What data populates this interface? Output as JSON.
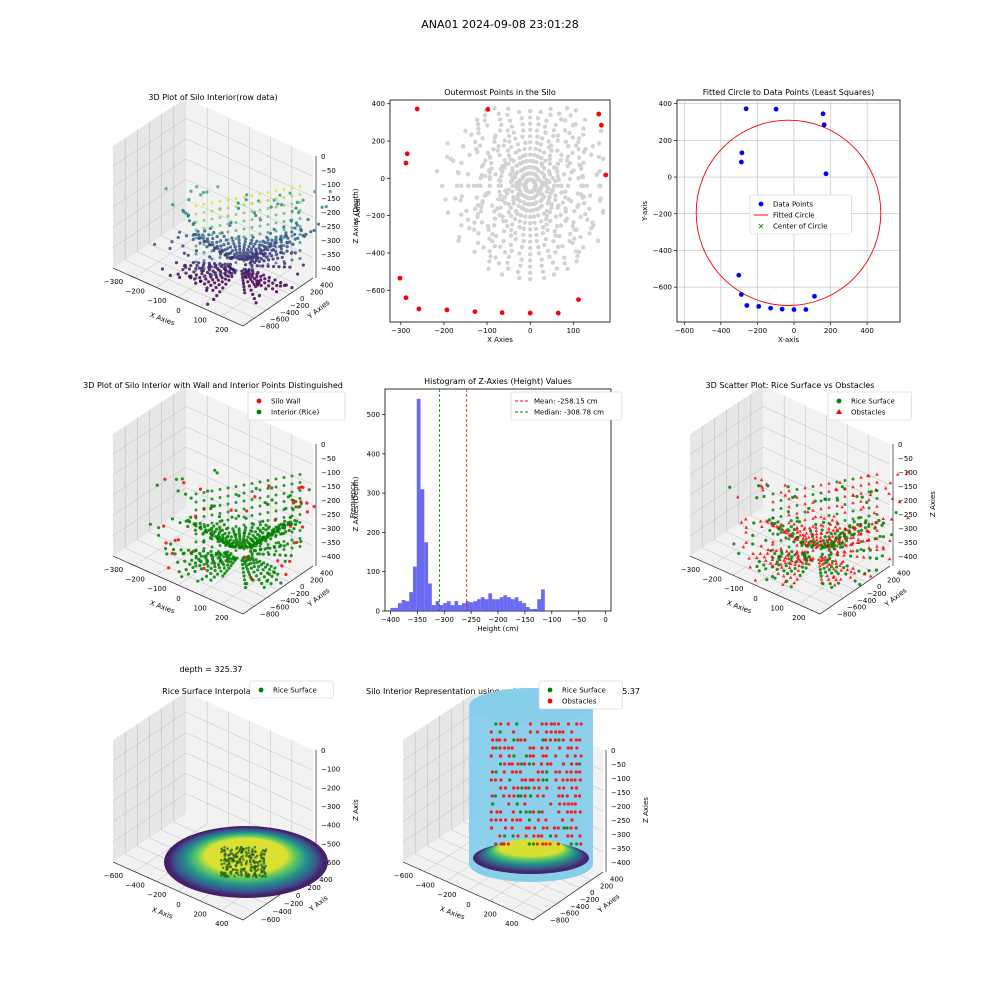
{
  "suptitle": "ANA01 2024-09-08 23:01:28",
  "colors": {
    "axis": "#000000",
    "grid": "#b0b0b0",
    "pane": "#f2f2f2",
    "pane_side": "#e6e6e6",
    "gray_point": "#d3d3d3",
    "red": "#ff0000",
    "blue": "#0000ff",
    "green": "#008000",
    "hist_bar": "#5050f2",
    "cylinder": "#87ceeb"
  },
  "chart_data": [
    {
      "id": "p1",
      "type": "scatter3d",
      "title": "3D Plot of Silo Interior(row data)",
      "xlabel": "X Axies",
      "ylabel": "Y Axies",
      "zlabel": "Z Axies (Depth)",
      "xticks": [
        "−300",
        "−200",
        "−100",
        "0",
        "100",
        "200"
      ],
      "yticks": [
        "400",
        "200",
        "0",
        "−200",
        "−400",
        "−600",
        "−800"
      ],
      "zticks": [
        "0",
        "−50",
        "−100",
        "−150",
        "−200",
        "−250",
        "−300",
        "−350",
        "−400"
      ],
      "colormap": "viridis"
    },
    {
      "id": "p2",
      "type": "scatter",
      "title": "Outermost Points in the Silo",
      "xlabel": "X Axies",
      "ylabel": "Y Axies",
      "xlim": [
        -325,
        185
      ],
      "ylim": [
        -770,
        420
      ],
      "xticks": [
        -300,
        -200,
        -100,
        0,
        100
      ],
      "yticks": [
        400,
        200,
        0,
        -200,
        -400,
        -600
      ],
      "series": [
        {
          "color": "red",
          "points": [
            [
              -262,
              372
            ],
            [
              -98,
              370
            ],
            [
              159,
              345
            ],
            [
              165,
              285
            ],
            [
              -285,
              132
            ],
            [
              -288,
              82
            ],
            [
              175,
              18
            ],
            [
              -302,
              -535
            ],
            [
              -288,
              -640
            ],
            [
              -258,
              -700
            ],
            [
              -193,
              -705
            ],
            [
              -128,
              -715
            ],
            [
              -65,
              -720
            ],
            [
              0,
              -722
            ],
            [
              65,
              -722
            ],
            [
              112,
              -650
            ]
          ]
        }
      ]
    },
    {
      "id": "p3",
      "type": "scatter",
      "title": "Fitted Circle to Data Points (Least Squares)",
      "xlabel": "X-axis",
      "ylabel": "Y-axis",
      "xlim": [
        -640,
        580
      ],
      "ylim": [
        -790,
        420
      ],
      "xticks": [
        -600,
        -400,
        -200,
        0,
        200,
        400
      ],
      "yticks": [
        400,
        200,
        0,
        -200,
        -400,
        -600
      ],
      "circle": {
        "cx": -30,
        "cy": -195,
        "r": 505
      },
      "center_marker": [
        -30,
        -195
      ],
      "points": [
        [
          -262,
          372
        ],
        [
          -98,
          370
        ],
        [
          159,
          345
        ],
        [
          165,
          285
        ],
        [
          -285,
          132
        ],
        [
          -288,
          82
        ],
        [
          175,
          18
        ],
        [
          -302,
          -535
        ],
        [
          -288,
          -640
        ],
        [
          -258,
          -700
        ],
        [
          -193,
          -705
        ],
        [
          -128,
          -715
        ],
        [
          -65,
          -720
        ],
        [
          0,
          -722
        ],
        [
          65,
          -722
        ],
        [
          112,
          -650
        ]
      ],
      "legend": [
        "Data Points",
        "Fitted Circle",
        "Center of Circle"
      ]
    },
    {
      "id": "p4",
      "type": "scatter3d",
      "title": "3D Plot of Silo Interior with Wall and Interior Points Distinguished",
      "xlabel": "X Axies",
      "ylabel": "Y Axies",
      "zlabel": "Z Axies (Depth)",
      "xticks": [
        "−300",
        "−200",
        "−100",
        "0",
        "100",
        "200"
      ],
      "yticks": [
        "400",
        "200",
        "0",
        "−200",
        "−400",
        "−600",
        "−800"
      ],
      "zticks": [
        "0",
        "−50",
        "−100",
        "−150",
        "−200",
        "−250",
        "−300",
        "−350",
        "−400"
      ],
      "legend": [
        "Silo Wall",
        "Interior (Rice)"
      ]
    },
    {
      "id": "p5",
      "type": "bar",
      "title": "Histogram of Z-Axies (Height) Values",
      "xlabel": "Height (cm)",
      "ylabel": "Frequency",
      "xlim": [
        -410,
        10
      ],
      "ylim": [
        0,
        565
      ],
      "xticks": [
        -400,
        -350,
        -300,
        -250,
        -200,
        -150,
        -100,
        -50,
        0
      ],
      "yticks": [
        0,
        100,
        200,
        300,
        400,
        500
      ],
      "bin_start": -400,
      "bin_width": 7,
      "values": [
        8,
        8,
        20,
        28,
        25,
        48,
        113,
        540,
        310,
        175,
        70,
        15,
        25,
        15,
        20,
        25,
        15,
        25,
        15,
        20,
        25,
        22,
        25,
        30,
        35,
        30,
        45,
        30,
        30,
        35,
        40,
        35,
        30,
        35,
        25,
        20,
        10,
        5,
        5,
        30,
        55
      ],
      "mean": -258.15,
      "median": -308.78,
      "legend": [
        "Mean: -258.15 cm",
        "Median: -308.78 cm"
      ]
    },
    {
      "id": "p6",
      "type": "scatter3d",
      "title": "3D Scatter Plot: Rice Surface vs Obstacles",
      "xlabel": "X Axies",
      "ylabel": "Y Axies",
      "zlabel": "Z Axies",
      "xticks": [
        "−300",
        "−200",
        "−100",
        "0",
        "100",
        "200"
      ],
      "yticks": [
        "400",
        "200",
        "0",
        "−200",
        "−400",
        "−600",
        "−800"
      ],
      "zticks": [
        "0",
        "−50",
        "−100",
        "−150",
        "−200",
        "−250",
        "−300",
        "−350",
        "−400"
      ],
      "legend": [
        "Rice Surface",
        "Obstacles"
      ]
    },
    {
      "id": "p7",
      "type": "surface3d",
      "title": "Rice Surface Interpolated",
      "subtitle": "depth = 325.37",
      "xlabel": "X Axis",
      "ylabel": "Y Axis",
      "zlabel": "Z Axis",
      "xticks": [
        "−600",
        "−400",
        "−200",
        "0",
        "200",
        "400"
      ],
      "yticks": [
        "400",
        "200",
        "0",
        "−200",
        "−400",
        "−600"
      ],
      "zticks": [
        "0",
        "−100",
        "−200",
        "−300",
        "−400",
        "−500",
        "−600"
      ],
      "legend": [
        "Rice Surface"
      ]
    },
    {
      "id": "p8",
      "type": "surface3d",
      "title": "Silo Interior Representation using weighted average depth = 325.37",
      "xlabel": "X Axies",
      "ylabel": "Y Axies",
      "zlabel": "Z Axies",
      "xticks": [
        "−600",
        "−400",
        "−200",
        "0",
        "200",
        "400"
      ],
      "yticks": [
        "400",
        "200",
        "0",
        "−200",
        "−400",
        "−600",
        "−800"
      ],
      "zticks": [
        "0",
        "−50",
        "−100",
        "−150",
        "−200",
        "−250",
        "−300",
        "−350",
        "−400"
      ],
      "legend": [
        "Rice Surface",
        "Obstacles"
      ]
    }
  ]
}
